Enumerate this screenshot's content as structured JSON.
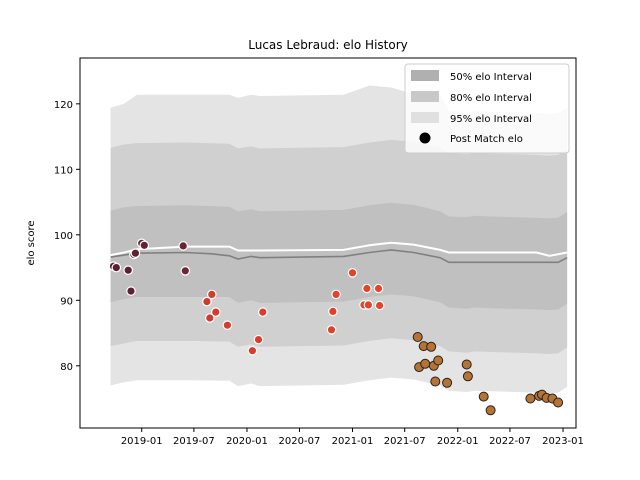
{
  "chart_data": {
    "type": "line",
    "title": "Lucas Lebraud: elo History",
    "xlabel": "",
    "ylabel": "elo score",
    "xlim": [
      "2018-06-01",
      "2023-02-15"
    ],
    "ylim": [
      70.5,
      127
    ],
    "x_ticks": [
      "2019-01",
      "2019-07",
      "2020-01",
      "2020-07",
      "2021-01",
      "2021-07",
      "2022-01",
      "2022-07",
      "2023-01"
    ],
    "y_ticks": [
      80,
      90,
      100,
      110,
      120
    ],
    "grid": false,
    "legend_position": "top-right",
    "legend": [
      {
        "label": "50% elo Interval",
        "color": "#b0b0b0"
      },
      {
        "label": "80% elo Interval",
        "color": "#c8c8c8"
      },
      {
        "label": "95% elo Interval",
        "color": "#e0e0e0"
      },
      {
        "label": "Post Match elo",
        "color": "#000000"
      }
    ],
    "bands": {
      "x": [
        "2018-09-15",
        "2018-11-01",
        "2018-12-15",
        "2019-06-01",
        "2019-11-01",
        "2019-12-01",
        "2020-01-15",
        "2020-02-15",
        "2020-12-01",
        "2021-03-01",
        "2021-05-15",
        "2021-08-01",
        "2021-11-01",
        "2021-12-01",
        "2022-02-01",
        "2022-03-01",
        "2022-05-01",
        "2022-10-01",
        "2022-11-15",
        "2022-12-15",
        "2023-01-15"
      ],
      "p50_low": [
        89.7,
        90.2,
        90.5,
        90.5,
        90.5,
        89.6,
        90.0,
        89.6,
        89.8,
        90.5,
        90.9,
        90.6,
        89.7,
        88.9,
        88.7,
        88.9,
        88.8,
        88.6,
        88.5,
        88.6,
        89.5
      ],
      "p50_high": [
        103.7,
        104.2,
        104.4,
        104.5,
        104.3,
        103.6,
        103.9,
        103.6,
        103.8,
        104.5,
        104.9,
        104.6,
        103.6,
        102.8,
        102.7,
        102.9,
        102.8,
        102.6,
        102.5,
        102.6,
        103.5
      ],
      "p80_low": [
        83.0,
        83.4,
        83.8,
        83.8,
        83.7,
        82.9,
        83.3,
        82.9,
        83.1,
        83.8,
        84.2,
        83.9,
        83.0,
        82.2,
        82.0,
        82.2,
        82.1,
        81.9,
        81.8,
        81.9,
        82.8
      ],
      "p80_high": [
        113.3,
        113.8,
        114.0,
        114.1,
        113.9,
        113.2,
        113.5,
        113.2,
        113.4,
        114.1,
        114.5,
        114.2,
        113.3,
        112.5,
        112.3,
        112.5,
        112.4,
        112.2,
        112.1,
        112.2,
        113.0
      ],
      "p95_low": [
        77.0,
        77.5,
        77.8,
        77.8,
        77.7,
        76.9,
        77.3,
        76.9,
        77.1,
        77.8,
        78.2,
        77.9,
        77.0,
        76.2,
        76.0,
        76.2,
        76.1,
        75.9,
        75.8,
        75.9,
        76.8
      ],
      "p95_high": [
        119.4,
        120.0,
        121.4,
        121.4,
        121.4,
        120.9,
        121.4,
        121.2,
        121.4,
        122.8,
        122.5,
        121.5,
        121.3,
        119.0,
        118.7,
        118.9,
        118.8,
        118.6,
        118.5,
        118.6,
        119.4
      ]
    },
    "series": [
      {
        "type": "line",
        "color": "#808080",
        "x": [
          "2018-09-15",
          "2018-11-01",
          "2018-12-15",
          "2019-06-01",
          "2019-09-01",
          "2019-11-01",
          "2019-12-01",
          "2020-01-15",
          "2020-02-15",
          "2020-12-01",
          "2021-03-01",
          "2021-05-15",
          "2021-08-01",
          "2021-11-01",
          "2021-12-01",
          "2022-02-01",
          "2022-03-01",
          "2022-05-01",
          "2022-10-01",
          "2022-11-15",
          "2022-12-15",
          "2023-01-15"
        ],
        "y": [
          96.6,
          96.9,
          97.2,
          97.3,
          97.1,
          96.8,
          96.3,
          96.7,
          96.5,
          96.7,
          97.3,
          97.7,
          97.3,
          96.5,
          95.8,
          95.8,
          95.8,
          95.8,
          95.8,
          95.8,
          95.8,
          96.5
        ]
      },
      {
        "type": "line",
        "color": "#ffffff",
        "x": [
          "2018-09-15",
          "2018-11-01",
          "2018-12-15",
          "2019-06-01",
          "2019-11-01",
          "2019-12-01",
          "2020-02-15",
          "2020-12-01",
          "2021-03-01",
          "2021-05-15",
          "2021-08-01",
          "2021-11-01",
          "2021-12-01",
          "2022-02-01",
          "2022-05-01",
          "2022-10-01",
          "2022-11-15",
          "2023-01-15"
        ],
        "y": [
          96.9,
          97.3,
          97.8,
          98.2,
          98.2,
          97.6,
          97.6,
          97.7,
          98.4,
          98.8,
          98.5,
          97.7,
          97.3,
          97.3,
          97.3,
          97.3,
          96.8,
          97.3
        ]
      },
      {
        "type": "scatter",
        "name": "Post Match elo",
        "points": [
          {
            "x": "2018-09-25",
            "y": 95.2,
            "color": "#5a1e34"
          },
          {
            "x": "2018-10-05",
            "y": 95.0,
            "color": "#5a1e34"
          },
          {
            "x": "2018-11-15",
            "y": 94.6,
            "color": "#5c1f34"
          },
          {
            "x": "2018-11-25",
            "y": 91.4,
            "color": "#5e2034"
          },
          {
            "x": "2018-12-05",
            "y": 97.0,
            "color": "#5e2034"
          },
          {
            "x": "2018-12-10",
            "y": 97.2,
            "color": "#602134"
          },
          {
            "x": "2019-01-01",
            "y": 98.7,
            "color": "#622234"
          },
          {
            "x": "2019-01-10",
            "y": 98.4,
            "color": "#632234"
          },
          {
            "x": "2019-05-25",
            "y": 98.3,
            "color": "#6a2535"
          },
          {
            "x": "2019-06-01",
            "y": 94.5,
            "color": "#6c2636"
          },
          {
            "x": "2019-08-15",
            "y": 89.8,
            "color": "#d03a2b"
          },
          {
            "x": "2019-08-25",
            "y": 87.3,
            "color": "#d23b2b"
          },
          {
            "x": "2019-09-01",
            "y": 90.9,
            "color": "#d43c2b"
          },
          {
            "x": "2019-09-15",
            "y": 88.2,
            "color": "#d43c2b"
          },
          {
            "x": "2019-10-25",
            "y": 86.2,
            "color": "#d63d2b"
          },
          {
            "x": "2020-01-20",
            "y": 82.3,
            "color": "#d83e2b"
          },
          {
            "x": "2020-02-10",
            "y": 84.0,
            "color": "#d83e2b"
          },
          {
            "x": "2020-02-25",
            "y": 88.2,
            "color": "#da3f2b"
          },
          {
            "x": "2020-10-20",
            "y": 85.5,
            "color": "#de412b"
          },
          {
            "x": "2020-10-25",
            "y": 88.3,
            "color": "#de412b"
          },
          {
            "x": "2020-11-05",
            "y": 90.9,
            "color": "#e0422b"
          },
          {
            "x": "2021-01-01",
            "y": 94.2,
            "color": "#e0422b"
          },
          {
            "x": "2021-02-10",
            "y": 89.3,
            "color": "#e2432b"
          },
          {
            "x": "2021-02-20",
            "y": 91.8,
            "color": "#e2432b"
          },
          {
            "x": "2021-02-25",
            "y": 89.3,
            "color": "#e4442b"
          },
          {
            "x": "2021-04-01",
            "y": 91.8,
            "color": "#e4442b"
          },
          {
            "x": "2021-04-05",
            "y": 89.2,
            "color": "#e4442b"
          },
          {
            "x": "2021-08-15",
            "y": 84.4,
            "color": "#b87333"
          },
          {
            "x": "2021-08-20",
            "y": 79.8,
            "color": "#b87333"
          },
          {
            "x": "2021-09-05",
            "y": 83.0,
            "color": "#b87333"
          },
          {
            "x": "2021-09-10",
            "y": 80.3,
            "color": "#b87333"
          },
          {
            "x": "2021-10-01",
            "y": 82.9,
            "color": "#b87333"
          },
          {
            "x": "2021-10-10",
            "y": 80.0,
            "color": "#b87333"
          },
          {
            "x": "2021-10-15",
            "y": 77.6,
            "color": "#b87333"
          },
          {
            "x": "2021-10-25",
            "y": 80.8,
            "color": "#b87333"
          },
          {
            "x": "2021-11-25",
            "y": 77.4,
            "color": "#b87333"
          },
          {
            "x": "2022-02-01",
            "y": 80.2,
            "color": "#b87333"
          },
          {
            "x": "2022-02-05",
            "y": 78.4,
            "color": "#b87333"
          },
          {
            "x": "2022-04-01",
            "y": 75.3,
            "color": "#b87333"
          },
          {
            "x": "2022-04-25",
            "y": 73.2,
            "color": "#b87333"
          },
          {
            "x": "2022-09-10",
            "y": 75.0,
            "color": "#b87333"
          },
          {
            "x": "2022-10-10",
            "y": 75.4,
            "color": "#b87333"
          },
          {
            "x": "2022-10-20",
            "y": 75.6,
            "color": "#b87333"
          },
          {
            "x": "2022-11-05",
            "y": 75.1,
            "color": "#b87333"
          },
          {
            "x": "2022-11-25",
            "y": 75.0,
            "color": "#b87333"
          },
          {
            "x": "2022-12-15",
            "y": 74.4,
            "color": "#b87333"
          }
        ]
      }
    ]
  }
}
